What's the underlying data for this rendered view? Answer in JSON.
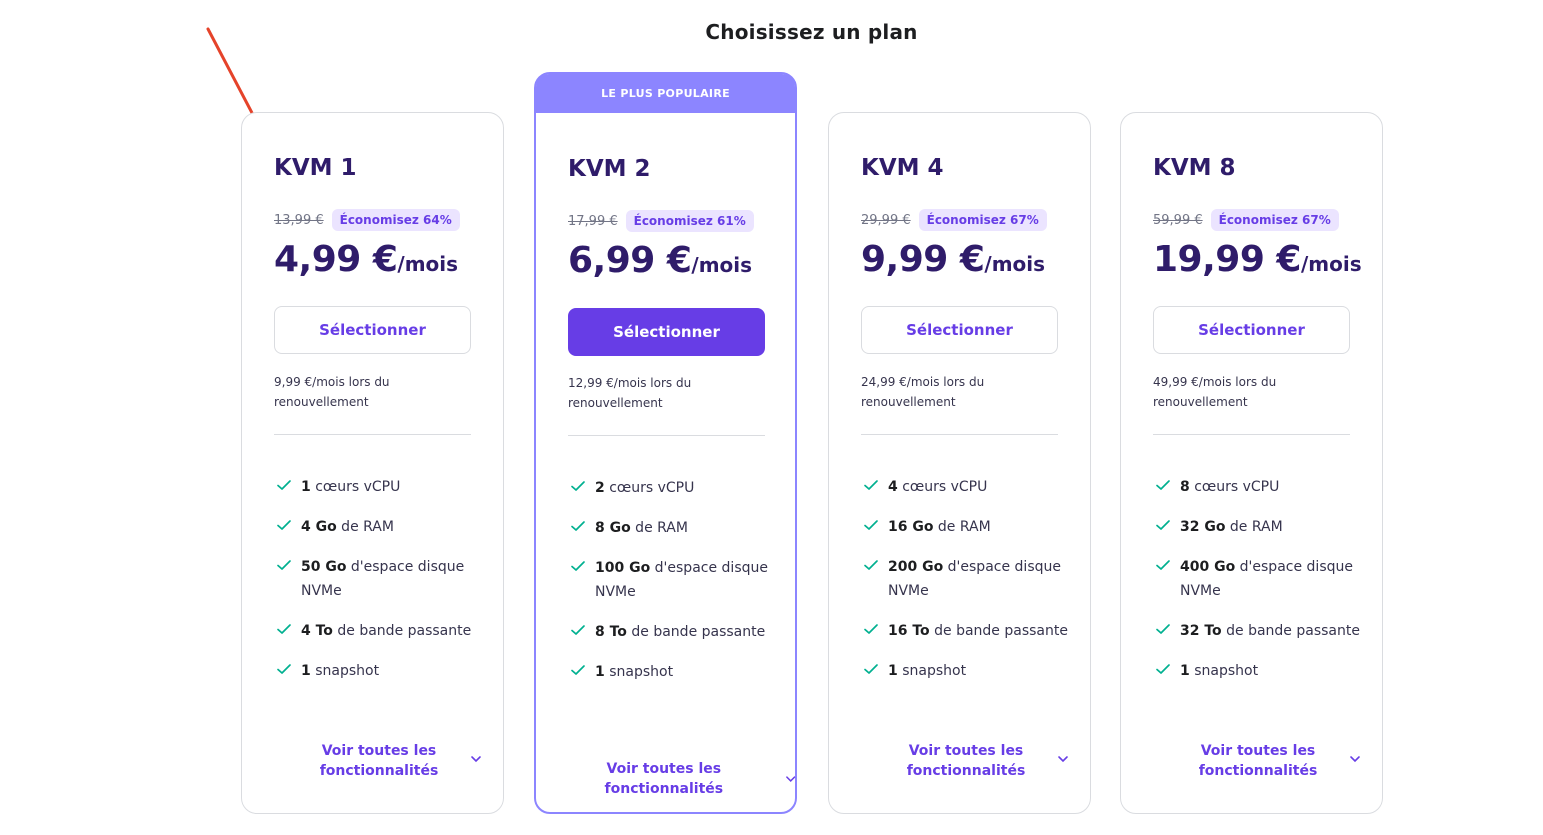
{
  "page_title": "Choisissez un plan",
  "popular_badge": "LE PLUS POPULAIRE",
  "colors": {
    "accent": "#673de6",
    "badge": "#8c85ff",
    "check": "#00b090",
    "arrow": "#e5432a"
  },
  "plans": [
    {
      "name": "KVM 1",
      "old_price": "13,99 €",
      "save": "Économisez 64%",
      "price": "4,99 €",
      "per": "/mois",
      "button": "Sélectionner",
      "renew_line1": "9,99 €/mois lors du",
      "renew_line2": "renouvellement",
      "features": [
        {
          "bold": "1",
          "text": " cœurs vCPU"
        },
        {
          "bold": "4 Go",
          "text": " de RAM"
        },
        {
          "bold": "50 Go",
          "text": " d'espace disque NVMe"
        },
        {
          "bold": "4 To",
          "text": " de bande passante"
        },
        {
          "bold": "1",
          "text": " snapshot"
        }
      ],
      "see_all": "Voir toutes les fonctionnalités"
    },
    {
      "name": "KVM 2",
      "old_price": "17,99 €",
      "save": "Économisez 61%",
      "price": "6,99 €",
      "per": "/mois",
      "button": "Sélectionner",
      "renew_line1": "12,99 €/mois lors du",
      "renew_line2": "renouvellement",
      "features": [
        {
          "bold": "2",
          "text": " cœurs vCPU"
        },
        {
          "bold": "8 Go",
          "text": " de RAM"
        },
        {
          "bold": "100 Go",
          "text": " d'espace disque NVMe"
        },
        {
          "bold": "8 To",
          "text": " de bande passante"
        },
        {
          "bold": "1",
          "text": " snapshot"
        }
      ],
      "see_all": "Voir toutes les fonctionnalités"
    },
    {
      "name": "KVM 4",
      "old_price": "29,99 €",
      "save": "Économisez 67%",
      "price": "9,99 €",
      "per": "/mois",
      "button": "Sélectionner",
      "renew_line1": "24,99 €/mois lors du",
      "renew_line2": "renouvellement",
      "features": [
        {
          "bold": "4",
          "text": " cœurs vCPU"
        },
        {
          "bold": "16 Go",
          "text": " de RAM"
        },
        {
          "bold": "200 Go",
          "text": " d'espace disque NVMe"
        },
        {
          "bold": "16 To",
          "text": " de bande passante"
        },
        {
          "bold": "1",
          "text": " snapshot"
        }
      ],
      "see_all": "Voir toutes les fonctionnalités"
    },
    {
      "name": "KVM 8",
      "old_price": "59,99 €",
      "save": "Économisez 67%",
      "price": "19,99 €",
      "per": "/mois",
      "button": "Sélectionner",
      "renew_line1": "49,99 €/mois lors du",
      "renew_line2": "renouvellement",
      "features": [
        {
          "bold": "8",
          "text": " cœurs vCPU"
        },
        {
          "bold": "32 Go",
          "text": " de RAM"
        },
        {
          "bold": "400 Go",
          "text": " d'espace disque NVMe"
        },
        {
          "bold": "32 To",
          "text": " de bande passante"
        },
        {
          "bold": "1",
          "text": " snapshot"
        }
      ],
      "see_all": "Voir toutes les fonctionnalités"
    }
  ]
}
